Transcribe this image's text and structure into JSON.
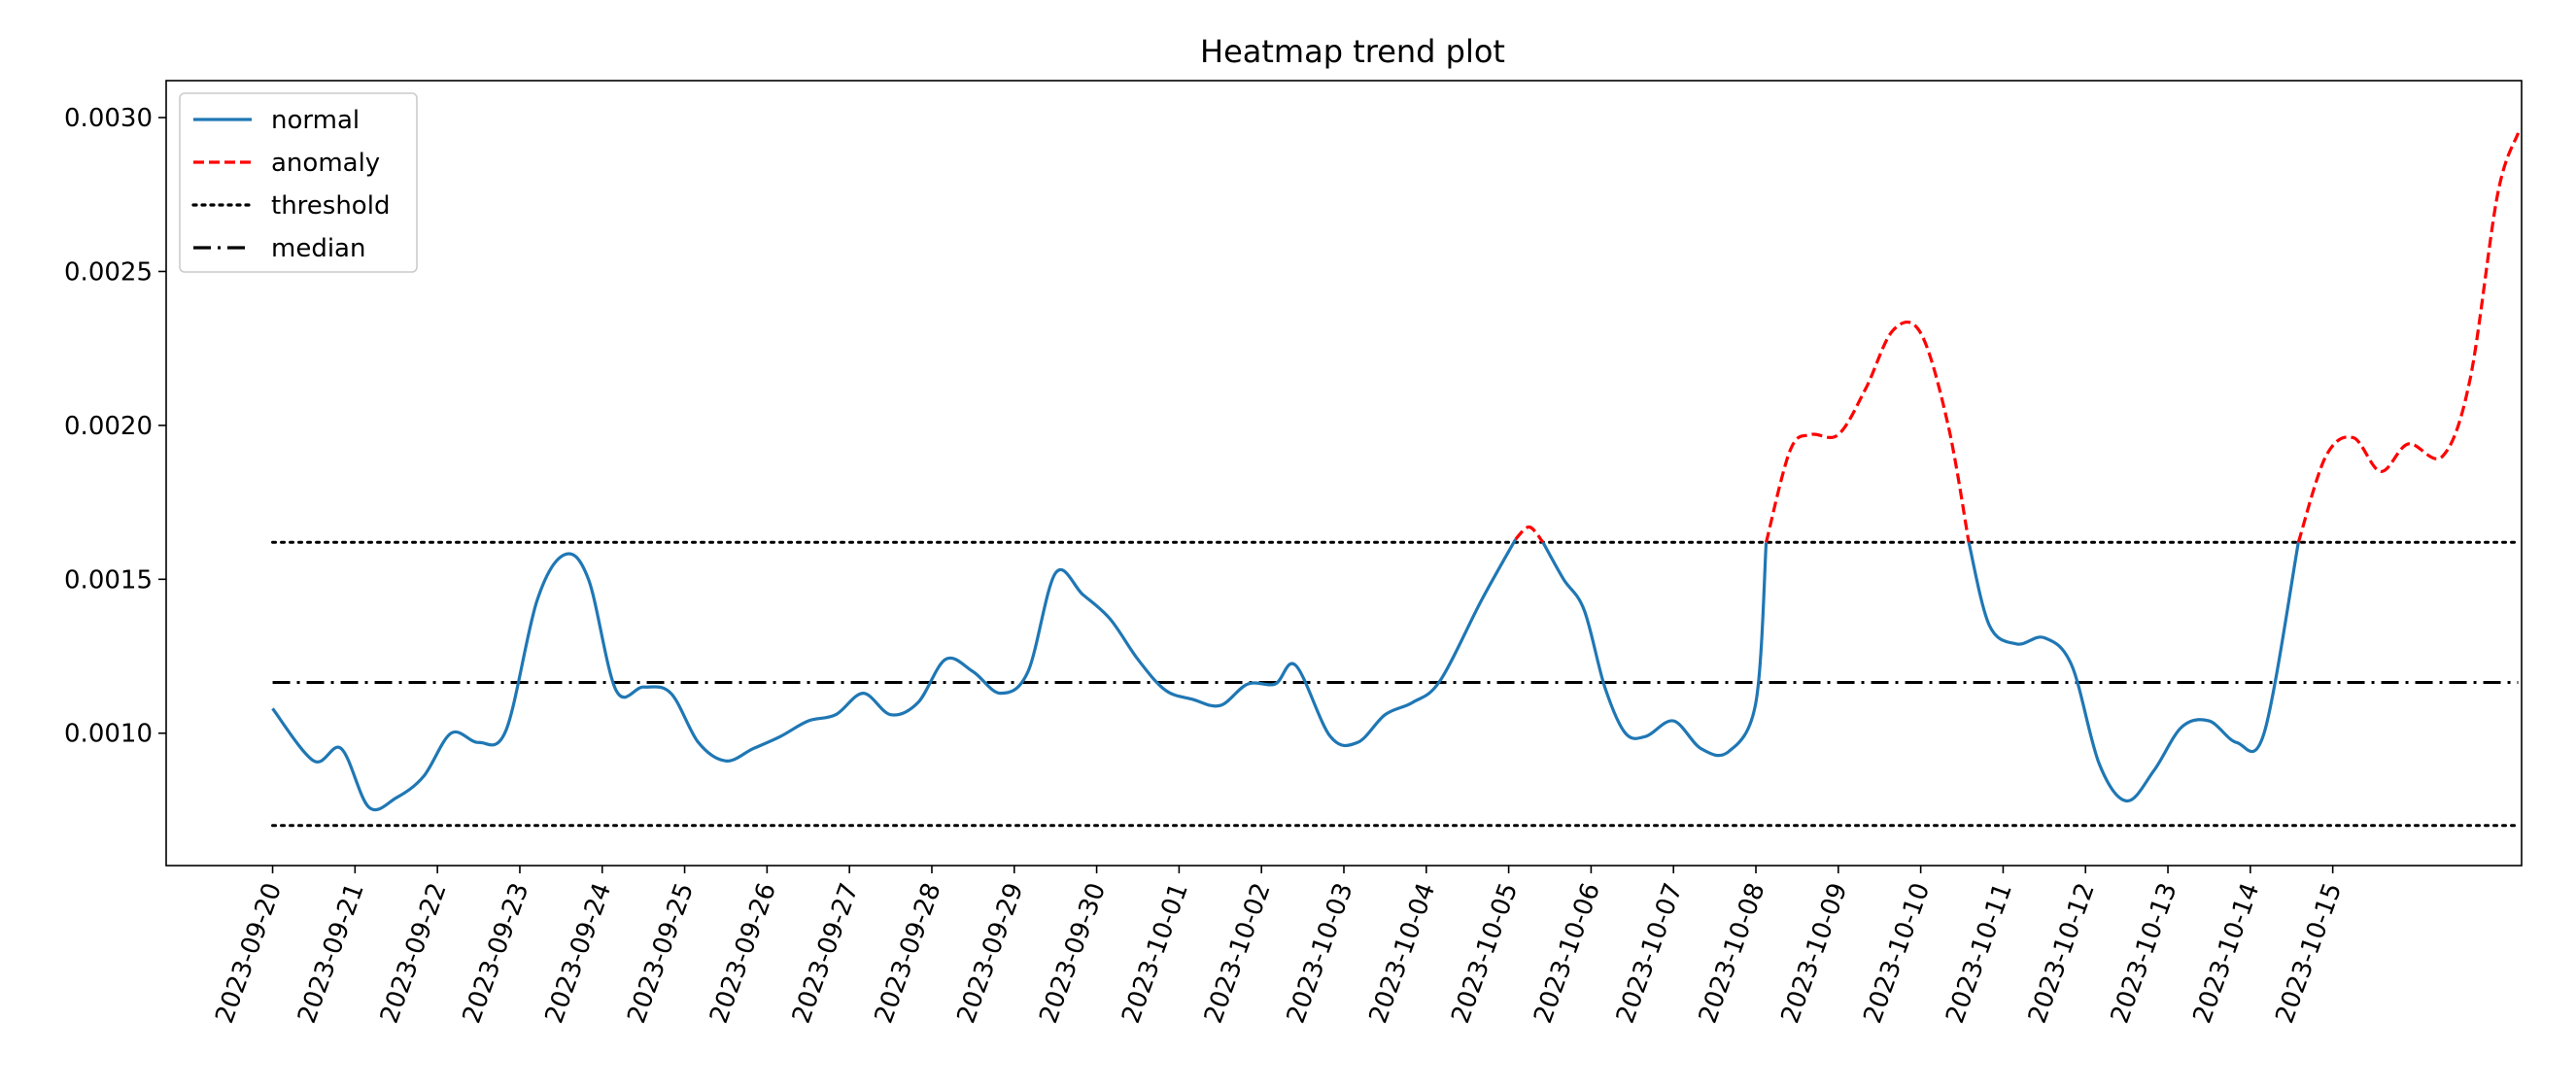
{
  "chart_data": {
    "type": "line",
    "title": "Heatmap trend plot",
    "xlabel": "",
    "ylabel": "",
    "x_tick_labels": [
      "2023-09-20",
      "2023-09-21",
      "2023-09-22",
      "2023-09-23",
      "2023-09-24",
      "2023-09-25",
      "2023-09-26",
      "2023-09-27",
      "2023-09-28",
      "2023-09-29",
      "2023-09-30",
      "2023-10-01",
      "2023-10-02",
      "2023-10-03",
      "2023-10-04",
      "2023-10-05",
      "2023-10-06",
      "2023-10-07",
      "2023-10-08",
      "2023-10-09",
      "2023-10-10",
      "2023-10-11",
      "2023-10-12",
      "2023-10-13",
      "2023-10-14",
      "2023-10-15"
    ],
    "y_ticks": [
      0.001,
      0.0015,
      0.002,
      0.0025,
      0.003
    ],
    "y_tick_labels": [
      "0.0010",
      "0.0015",
      "0.0020",
      "0.0025",
      "0.0030"
    ],
    "xlim": [
      "2023-09-18T17:00",
      "2023-10-17T07:00"
    ],
    "ylim": [
      0.00057,
      0.00312
    ],
    "grid": false,
    "legend_position": "top-left",
    "threshold_upper": 0.00162,
    "threshold_lower": 0.0007,
    "median": 0.001165,
    "series": [
      {
        "name": "normal",
        "color": "#1f77b4",
        "style": "solid",
        "points": [
          [
            "2023-09-20T00:00",
            0.00108
          ],
          [
            "2023-09-20T12:00",
            0.00091
          ],
          [
            "2023-09-20T20:00",
            0.00095
          ],
          [
            "2023-09-21T04:00",
            0.00076
          ],
          [
            "2023-09-21T12:00",
            0.00079
          ],
          [
            "2023-09-21T20:00",
            0.00086
          ],
          [
            "2023-09-22T04:00",
            0.001
          ],
          [
            "2023-09-22T12:00",
            0.00097
          ],
          [
            "2023-09-22T20:00",
            0.00101
          ],
          [
            "2023-09-23T05:00",
            0.00143
          ],
          [
            "2023-09-23T13:00",
            0.00158
          ],
          [
            "2023-09-23T20:00",
            0.0015
          ],
          [
            "2023-09-24T04:00",
            0.00114
          ],
          [
            "2023-09-24T12:00",
            0.00115
          ],
          [
            "2023-09-24T20:00",
            0.00113
          ],
          [
            "2023-09-25T04:00",
            0.00097
          ],
          [
            "2023-09-25T12:00",
            0.00091
          ],
          [
            "2023-09-25T20:00",
            0.00095
          ],
          [
            "2023-09-26T04:00",
            0.00099
          ],
          [
            "2023-09-26T12:00",
            0.00104
          ],
          [
            "2023-09-26T20:00",
            0.00106
          ],
          [
            "2023-09-27T04:00",
            0.00113
          ],
          [
            "2023-09-27T12:00",
            0.00106
          ],
          [
            "2023-09-27T20:00",
            0.0011
          ],
          [
            "2023-09-28T04:00",
            0.00124
          ],
          [
            "2023-09-28T12:00",
            0.0012
          ],
          [
            "2023-09-28T20:00",
            0.00113
          ],
          [
            "2023-09-29T04:00",
            0.0012
          ],
          [
            "2023-09-29T12:00",
            0.00152
          ],
          [
            "2023-09-29T20:00",
            0.00145
          ],
          [
            "2023-09-30T04:00",
            0.00137
          ],
          [
            "2023-09-30T12:00",
            0.00124
          ],
          [
            "2023-09-30T20:00",
            0.00114
          ],
          [
            "2023-10-01T04:00",
            0.00111
          ],
          [
            "2023-10-01T12:00",
            0.00109
          ],
          [
            "2023-10-01T20:00",
            0.00116
          ],
          [
            "2023-10-02T04:00",
            0.00116
          ],
          [
            "2023-10-02T10:00",
            0.00122
          ],
          [
            "2023-10-02T20:00",
            0.00099
          ],
          [
            "2023-10-03T04:00",
            0.00097
          ],
          [
            "2023-10-03T12:00",
            0.00106
          ],
          [
            "2023-10-03T20:00",
            0.0011
          ],
          [
            "2023-10-04T04:00",
            0.00117
          ],
          [
            "2023-10-04T16:00",
            0.00143
          ],
          [
            "2023-10-05T02:00",
            0.00163
          ]
        ]
      },
      {
        "name": "normal",
        "color": "#1f77b4",
        "style": "solid",
        "points": [
          [
            "2023-10-05T10:00",
            0.00162
          ],
          [
            "2023-10-05T16:00",
            0.0015
          ],
          [
            "2023-10-05T22:00",
            0.0014
          ],
          [
            "2023-10-06T04:00",
            0.00115
          ],
          [
            "2023-10-06T10:00",
            0.001
          ],
          [
            "2023-10-06T16:00",
            0.00099
          ],
          [
            "2023-10-07T00:00",
            0.00104
          ],
          [
            "2023-10-07T08:00",
            0.00095
          ],
          [
            "2023-10-07T16:00",
            0.00094
          ],
          [
            "2023-10-08T00:00",
            0.0011
          ],
          [
            "2023-10-08T03:00",
            0.00162
          ]
        ]
      },
      {
        "name": "anomaly",
        "color": "#ff0000",
        "style": "dashed",
        "points": [
          [
            "2023-10-05T02:00",
            0.00163
          ],
          [
            "2023-10-05T06:00",
            0.00167
          ],
          [
            "2023-10-05T10:00",
            0.00162
          ]
        ]
      },
      {
        "name": "anomaly",
        "color": "#ff0000",
        "style": "dashed",
        "points": [
          [
            "2023-10-08T03:00",
            0.00162
          ],
          [
            "2023-10-08T10:00",
            0.00192
          ],
          [
            "2023-10-08T16:00",
            0.00197
          ],
          [
            "2023-10-09T00:00",
            0.00197
          ],
          [
            "2023-10-09T08:00",
            0.00212
          ],
          [
            "2023-10-09T16:00",
            0.00231
          ],
          [
            "2023-10-10T00:00",
            0.0023
          ],
          [
            "2023-10-10T08:00",
            0.002
          ],
          [
            "2023-10-10T14:00",
            0.00162
          ]
        ]
      },
      {
        "name": "normal",
        "color": "#1f77b4",
        "style": "solid",
        "points": [
          [
            "2023-10-10T14:00",
            0.00162
          ],
          [
            "2023-10-10T20:00",
            0.00135
          ],
          [
            "2023-10-11T04:00",
            0.00129
          ],
          [
            "2023-10-11T12:00",
            0.00131
          ],
          [
            "2023-10-11T20:00",
            0.00122
          ],
          [
            "2023-10-12T04:00",
            0.0009
          ],
          [
            "2023-10-12T12:00",
            0.00078
          ],
          [
            "2023-10-12T20:00",
            0.00088
          ],
          [
            "2023-10-13T04:00",
            0.00102
          ],
          [
            "2023-10-13T12:00",
            0.00104
          ],
          [
            "2023-10-13T20:00",
            0.00097
          ],
          [
            "2023-10-14T04:00",
            0.001
          ],
          [
            "2023-10-14T14:00",
            0.00162
          ]
        ]
      },
      {
        "name": "anomaly",
        "color": "#ff0000",
        "style": "dashed",
        "points": [
          [
            "2023-10-14T14:00",
            0.00162
          ],
          [
            "2023-10-14T22:00",
            0.0019
          ],
          [
            "2023-10-15T06:00",
            0.00196
          ],
          [
            "2023-10-15T14:00",
            0.00185
          ],
          [
            "2023-10-15T22:00",
            0.00194
          ],
          [
            "2023-10-16T08:00",
            0.0019
          ],
          [
            "2023-10-16T16:00",
            0.00215
          ],
          [
            "2023-10-17T00:00",
            0.00275
          ],
          [
            "2023-10-17T06:00",
            0.00295
          ]
        ]
      }
    ]
  }
}
